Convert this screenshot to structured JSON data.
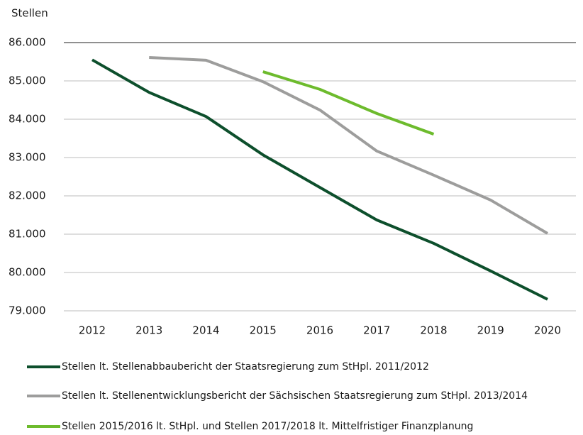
{
  "chart_data": {
    "type": "line",
    "y_axis_label": "Stellen",
    "categories": [
      "2012",
      "2013",
      "2014",
      "2015",
      "2016",
      "2017",
      "2018",
      "2019",
      "2020"
    ],
    "series": [
      {
        "name": "Stellen lt. Stellenabbaubericht der Staatsregierung zum StHpl. 2011/2012",
        "color": "#0d4f2c",
        "values": [
          85550,
          84700,
          84070,
          83070,
          82220,
          81370,
          80760,
          80040,
          79300
        ]
      },
      {
        "name": "Stellen lt. Stellenentwicklungsbericht der Sächsischen Staatsregierung zum StHpl. 2013/2014",
        "color": "#9d9d9c",
        "values": [
          null,
          85610,
          85540,
          84980,
          84240,
          83170,
          82540,
          81890,
          81020
        ]
      },
      {
        "name": "Stellen 2015/2016  lt. StHpl. und Stellen 2017/2018 lt. Mittelfristiger Finanzplanung",
        "color": "#6dbb2d",
        "values": [
          null,
          null,
          null,
          85240,
          84780,
          84150,
          83610,
          null,
          null
        ]
      }
    ],
    "ylim": [
      79000,
      86000
    ],
    "yticks": [
      {
        "value": 79000,
        "label": "79.000"
      },
      {
        "value": 80000,
        "label": "80.000"
      },
      {
        "value": 81000,
        "label": "81.000"
      },
      {
        "value": 82000,
        "label": "82.000"
      },
      {
        "value": 83000,
        "label": "83.000"
      },
      {
        "value": 84000,
        "label": "84.000"
      },
      {
        "value": 85000,
        "label": "85.000"
      },
      {
        "value": 86000,
        "label": "86.000"
      }
    ],
    "grid": true,
    "legend": "bottom"
  }
}
